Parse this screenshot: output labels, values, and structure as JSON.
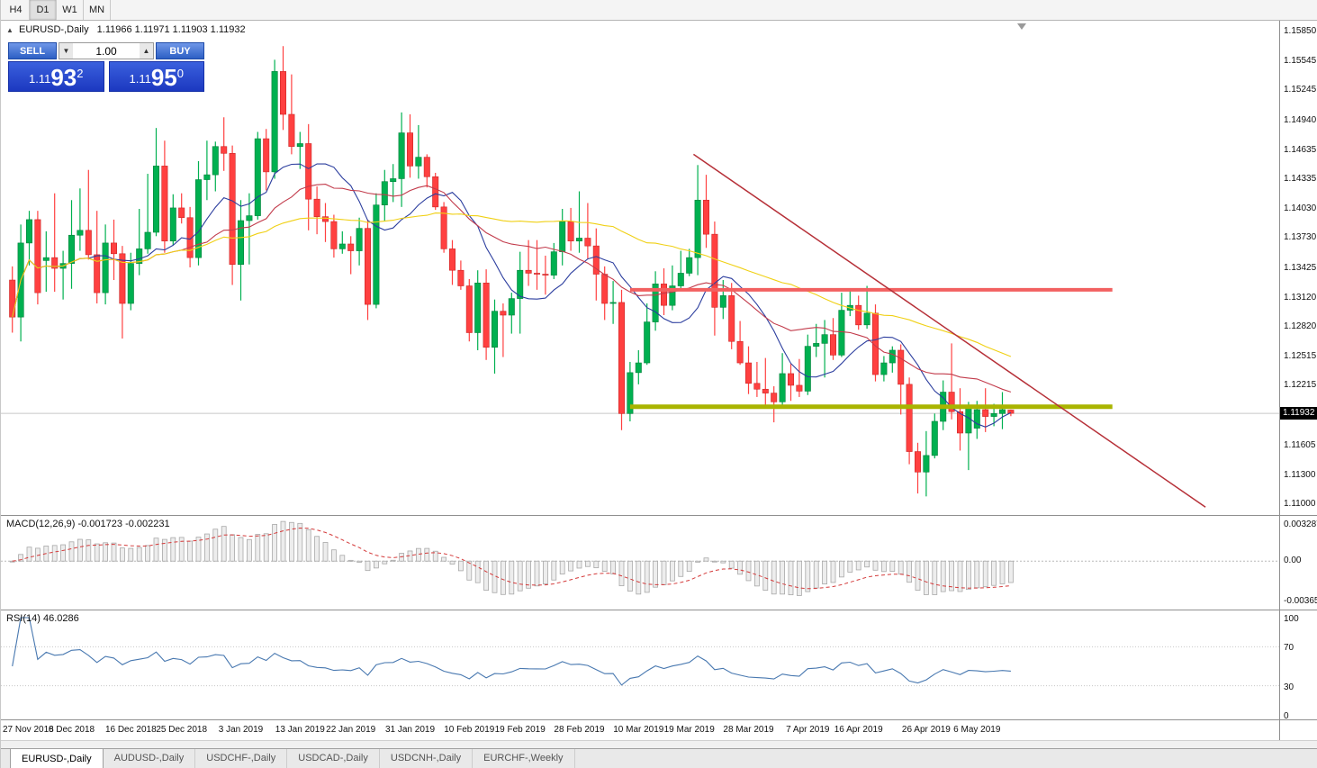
{
  "toolbar": {
    "timeframes": [
      {
        "label": "H4",
        "active": false
      },
      {
        "label": "D1",
        "active": true
      },
      {
        "label": "W1",
        "active": false
      },
      {
        "label": "MN",
        "active": false
      }
    ]
  },
  "icons": {
    "chart_symbol": "▲",
    "spin_up": "▲",
    "spin_down": "▼"
  },
  "chart": {
    "title": "EURUSD-,Daily",
    "ohlc_text": "1.11966 1.11971 1.11903 1.11932",
    "current_price": "1.11932",
    "trade_panel": {
      "sell_label": "SELL",
      "buy_label": "BUY",
      "volume": "1.00",
      "bid_main": "1.11",
      "bid_pips": "93",
      "bid_sup": "2",
      "ask_main": "1.11",
      "ask_pips": "95",
      "ask_sup": "0"
    }
  },
  "macd_label": "MACD(12,26,9) -0.001723 -0.002231",
  "rsi_label": "RSI(14) 46.0286",
  "bottom_tabs": [
    {
      "label": "EURUSD-,Daily",
      "active": true
    },
    {
      "label": "AUDUSD-,Daily",
      "active": false
    },
    {
      "label": "USDCHF-,Daily",
      "active": false
    },
    {
      "label": "USDCAD-,Daily",
      "active": false
    },
    {
      "label": "USDCNH-,Daily",
      "active": false
    },
    {
      "label": "EURCHF-,Weekly",
      "active": false
    }
  ],
  "chart_data": {
    "type": "candlestick",
    "title": "EURUSD-,Daily",
    "ylim": [
      1.11,
      1.1585
    ],
    "last_price": 1.11932,
    "candle_colors": {
      "bull": "#00b050",
      "bear": "#ff4040"
    },
    "price_axis_ticks": [
      "1.15850",
      "1.15545",
      "1.15245",
      "1.14940",
      "1.14635",
      "1.14335",
      "1.14030",
      "1.13730",
      "1.13425",
      "1.13120",
      "1.12820",
      "1.12515",
      "1.12215",
      "1.11910",
      "1.11605",
      "1.11300",
      "1.11000"
    ],
    "date_ticks": [
      {
        "label": "27 Nov 2018",
        "index": 0
      },
      {
        "label": "6 Dec 2018",
        "index": 7
      },
      {
        "label": "16 Dec 2018",
        "index": 14
      },
      {
        "label": "25 Dec 2018",
        "index": 20
      },
      {
        "label": "3 Jan 2019",
        "index": 27
      },
      {
        "label": "13 Jan 2019",
        "index": 34
      },
      {
        "label": "22 Jan 2019",
        "index": 40
      },
      {
        "label": "31 Jan 2019",
        "index": 47
      },
      {
        "label": "10 Feb 2019",
        "index": 54
      },
      {
        "label": "19 Feb 2019",
        "index": 60
      },
      {
        "label": "28 Feb 2019",
        "index": 67
      },
      {
        "label": "10 Mar 2019",
        "index": 74
      },
      {
        "label": "19 Mar 2019",
        "index": 80
      },
      {
        "label": "28 Mar 2019",
        "index": 87
      },
      {
        "label": "7 Apr 2019",
        "index": 94
      },
      {
        "label": "16 Apr 2019",
        "index": 100
      },
      {
        "label": "26 Apr 2019",
        "index": 108
      },
      {
        "label": "6 May 2019",
        "index": 114
      }
    ],
    "ohlc": [
      [
        1.133,
        1.1344,
        1.1276,
        1.1292
      ],
      [
        1.1292,
        1.1387,
        1.1267,
        1.1368
      ],
      [
        1.1368,
        1.1401,
        1.1345,
        1.1392
      ],
      [
        1.1392,
        1.1401,
        1.1305,
        1.1317
      ],
      [
        1.135,
        1.138,
        1.1318,
        1.1353
      ],
      [
        1.1353,
        1.1419,
        1.1318,
        1.1342
      ],
      [
        1.1342,
        1.136,
        1.131,
        1.1347
      ],
      [
        1.1347,
        1.1412,
        1.1321,
        1.1376
      ],
      [
        1.1376,
        1.1424,
        1.136,
        1.1381
      ],
      [
        1.1381,
        1.1443,
        1.1351,
        1.1356
      ],
      [
        1.1356,
        1.1401,
        1.1306,
        1.1317
      ],
      [
        1.1317,
        1.1387,
        1.1305,
        1.1368
      ],
      [
        1.1368,
        1.1392,
        1.133,
        1.1357
      ],
      [
        1.1357,
        1.1365,
        1.127,
        1.1306
      ],
      [
        1.1306,
        1.1358,
        1.1299,
        1.1347
      ],
      [
        1.1347,
        1.1403,
        1.1335,
        1.1362
      ],
      [
        1.1362,
        1.1439,
        1.1357,
        1.1379
      ],
      [
        1.1379,
        1.1486,
        1.1375,
        1.1447
      ],
      [
        1.1447,
        1.1473,
        1.1358,
        1.137
      ],
      [
        1.137,
        1.1418,
        1.1366,
        1.1404
      ],
      [
        1.1404,
        1.1419,
        1.1388,
        1.1394
      ],
      [
        1.1394,
        1.1405,
        1.1343,
        1.1353
      ],
      [
        1.1353,
        1.1452,
        1.1345,
        1.1433
      ],
      [
        1.1433,
        1.1473,
        1.1412,
        1.1438
      ],
      [
        1.1438,
        1.1472,
        1.1421,
        1.1467
      ],
      [
        1.1467,
        1.1497,
        1.1442,
        1.146
      ],
      [
        1.146,
        1.1468,
        1.1325,
        1.1346
      ],
      [
        1.1346,
        1.1412,
        1.1309,
        1.1391
      ],
      [
        1.1391,
        1.1419,
        1.1346,
        1.1396
      ],
      [
        1.1396,
        1.1482,
        1.1392,
        1.1475
      ],
      [
        1.1475,
        1.1485,
        1.1422,
        1.1441
      ],
      [
        1.1441,
        1.1556,
        1.1434,
        1.1544
      ],
      [
        1.1544,
        1.157,
        1.1484,
        1.15
      ],
      [
        1.15,
        1.1541,
        1.1459,
        1.1467
      ],
      [
        1.1467,
        1.1482,
        1.1444,
        1.147
      ],
      [
        1.147,
        1.149,
        1.1381,
        1.1413
      ],
      [
        1.1413,
        1.1426,
        1.1377,
        1.1395
      ],
      [
        1.1395,
        1.1409,
        1.1369,
        1.139
      ],
      [
        1.139,
        1.1397,
        1.1353,
        1.1362
      ],
      [
        1.1362,
        1.138,
        1.1357,
        1.1367
      ],
      [
        1.1367,
        1.1375,
        1.1336,
        1.136
      ],
      [
        1.136,
        1.1394,
        1.1345,
        1.1383
      ],
      [
        1.1383,
        1.1392,
        1.1289,
        1.1305
      ],
      [
        1.1305,
        1.1419,
        1.1301,
        1.1407
      ],
      [
        1.1407,
        1.1443,
        1.139,
        1.1431
      ],
      [
        1.1431,
        1.1449,
        1.141,
        1.1434
      ],
      [
        1.1434,
        1.1502,
        1.1405,
        1.1481
      ],
      [
        1.1481,
        1.15,
        1.1435,
        1.1447
      ],
      [
        1.1447,
        1.1489,
        1.1434,
        1.1456
      ],
      [
        1.1456,
        1.1459,
        1.1425,
        1.1436
      ],
      [
        1.1436,
        1.144,
        1.1402,
        1.1405
      ],
      [
        1.1405,
        1.141,
        1.1358,
        1.1362
      ],
      [
        1.1362,
        1.1371,
        1.1325,
        1.134
      ],
      [
        1.134,
        1.135,
        1.132,
        1.1324
      ],
      [
        1.1324,
        1.1331,
        1.1267,
        1.1276
      ],
      [
        1.1276,
        1.134,
        1.1258,
        1.1327
      ],
      [
        1.1327,
        1.1341,
        1.1248,
        1.1261
      ],
      [
        1.1261,
        1.131,
        1.1234,
        1.1298
      ],
      [
        1.1298,
        1.1306,
        1.1251,
        1.1294
      ],
      [
        1.1294,
        1.1317,
        1.1275,
        1.1311
      ],
      [
        1.1311,
        1.1359,
        1.1275,
        1.134
      ],
      [
        1.134,
        1.1371,
        1.1324,
        1.1337
      ],
      [
        1.1337,
        1.1371,
        1.132,
        1.1336
      ],
      [
        1.1336,
        1.1355,
        1.1315,
        1.1335
      ],
      [
        1.1335,
        1.1368,
        1.1331,
        1.1359
      ],
      [
        1.1359,
        1.1403,
        1.1345,
        1.139
      ],
      [
        1.139,
        1.1404,
        1.136,
        1.137
      ],
      [
        1.137,
        1.1421,
        1.1358,
        1.1373
      ],
      [
        1.1373,
        1.1409,
        1.1352,
        1.1365
      ],
      [
        1.1365,
        1.1383,
        1.1309,
        1.1336
      ],
      [
        1.1336,
        1.1344,
        1.1289,
        1.1306
      ],
      [
        1.1306,
        1.1329,
        1.1285,
        1.1307
      ],
      [
        1.1307,
        1.132,
        1.1176,
        1.1193
      ],
      [
        1.1193,
        1.1246,
        1.1185,
        1.1235
      ],
      [
        1.1235,
        1.1258,
        1.1223,
        1.1245
      ],
      [
        1.1245,
        1.1306,
        1.1243,
        1.1287
      ],
      [
        1.1287,
        1.1339,
        1.1278,
        1.1326
      ],
      [
        1.1326,
        1.1342,
        1.1294,
        1.1304
      ],
      [
        1.1304,
        1.1345,
        1.1299,
        1.1324
      ],
      [
        1.1324,
        1.136,
        1.1319,
        1.1337
      ],
      [
        1.1337,
        1.1362,
        1.1334,
        1.1353
      ],
      [
        1.1353,
        1.1448,
        1.1335,
        1.1412
      ],
      [
        1.1412,
        1.1438,
        1.1363,
        1.1377
      ],
      [
        1.1377,
        1.139,
        1.1273,
        1.1302
      ],
      [
        1.1302,
        1.133,
        1.129,
        1.1314
      ],
      [
        1.1314,
        1.1327,
        1.1259,
        1.1267
      ],
      [
        1.1267,
        1.1288,
        1.1243,
        1.1245
      ],
      [
        1.1245,
        1.1262,
        1.1213,
        1.1224
      ],
      [
        1.1224,
        1.1246,
        1.121,
        1.1218
      ],
      [
        1.1218,
        1.125,
        1.1199,
        1.1214
      ],
      [
        1.1214,
        1.1221,
        1.1184,
        1.1205
      ],
      [
        1.1205,
        1.1255,
        1.12,
        1.1234
      ],
      [
        1.1234,
        1.1244,
        1.1206,
        1.1222
      ],
      [
        1.1222,
        1.1249,
        1.121,
        1.1216
      ],
      [
        1.1216,
        1.1274,
        1.1212,
        1.1262
      ],
      [
        1.1262,
        1.1285,
        1.1251,
        1.1265
      ],
      [
        1.1265,
        1.1289,
        1.123,
        1.1274
      ],
      [
        1.1274,
        1.1291,
        1.1248,
        1.1253
      ],
      [
        1.1253,
        1.1317,
        1.1251,
        1.1299
      ],
      [
        1.1299,
        1.132,
        1.1293,
        1.1304
      ],
      [
        1.1304,
        1.1314,
        1.1279,
        1.1284
      ],
      [
        1.1284,
        1.1324,
        1.128,
        1.1296
      ],
      [
        1.1296,
        1.1305,
        1.1226,
        1.1233
      ],
      [
        1.1233,
        1.1252,
        1.1226,
        1.1245
      ],
      [
        1.1245,
        1.1262,
        1.1235,
        1.1258
      ],
      [
        1.1258,
        1.1264,
        1.1192,
        1.1223
      ],
      [
        1.1223,
        1.123,
        1.1141,
        1.1154
      ],
      [
        1.1154,
        1.1163,
        1.1111,
        1.1133
      ],
      [
        1.1133,
        1.1175,
        1.1108,
        1.115
      ],
      [
        1.115,
        1.1193,
        1.1147,
        1.1185
      ],
      [
        1.1185,
        1.1227,
        1.1176,
        1.1215
      ],
      [
        1.1215,
        1.1265,
        1.1187,
        1.1195
      ],
      [
        1.1195,
        1.1219,
        1.1155,
        1.1173
      ],
      [
        1.1173,
        1.1205,
        1.1135,
        1.12
      ],
      [
        1.1178,
        1.1206,
        1.1167,
        1.1197
      ],
      [
        1.1197,
        1.1219,
        1.1174,
        1.119
      ],
      [
        1.119,
        1.1203,
        1.118,
        1.1193
      ],
      [
        1.1193,
        1.1215,
        1.1177,
        1.1197
      ],
      [
        1.11966,
        1.11971,
        1.11903,
        1.11932
      ]
    ],
    "moving_averages": [
      {
        "period": 10,
        "color": "#2b3d9e"
      },
      {
        "period": 21,
        "color": "#c23b4b"
      },
      {
        "period": 50,
        "color": "#f0d014"
      }
    ],
    "overlays": {
      "resistance_line": {
        "price": 1.132,
        "from_index": 73,
        "to_index": 130,
        "color": "#f26060",
        "width": 4
      },
      "support_line": {
        "price": 1.12,
        "from_index": 73,
        "to_index": 130,
        "color": "#a9b400",
        "width": 5
      },
      "trendline": {
        "from": {
          "index": 80.5,
          "price": 1.1459
        },
        "to": {
          "index": 141,
          "price": 1.1097
        },
        "color": "#b63038",
        "width": 1.5
      }
    },
    "macd": {
      "fast": 12,
      "slow": 26,
      "signal": 9,
      "value": -0.001723,
      "signal_value": -0.002231,
      "ylim": [
        -0.003659,
        0.003287
      ],
      "axis_ticks": [
        "0.003287",
        "0.00",
        "-0.003659"
      ],
      "histogram_fill": "#ededed",
      "histogram_stroke": "#a8a8a8",
      "signal_color": "#d43a3a"
    },
    "rsi": {
      "period": 14,
      "value": 46.0286,
      "ylim": [
        0,
        100
      ],
      "levels": [
        30,
        70
      ],
      "axis_ticks": [
        "100",
        "70",
        "30",
        "0"
      ],
      "line_color": "#4878b0"
    }
  }
}
